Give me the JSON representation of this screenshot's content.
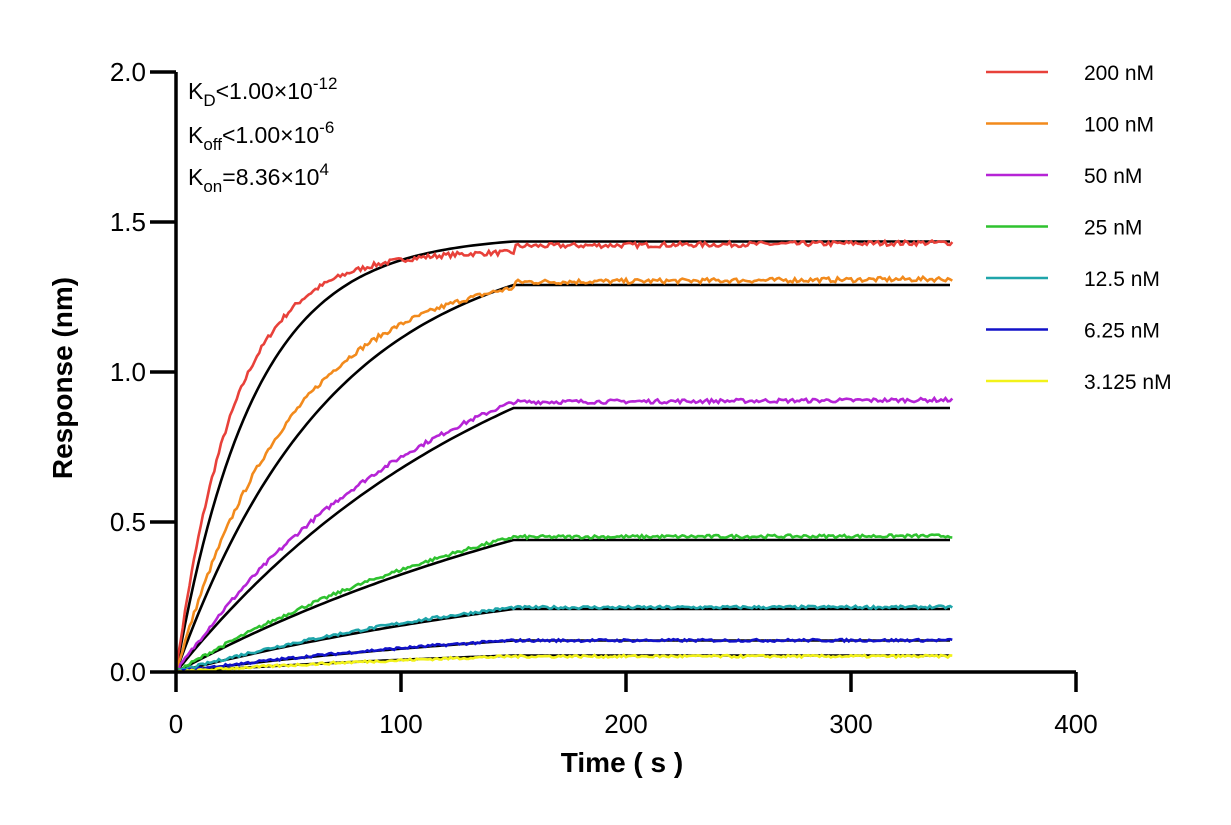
{
  "chart_data": {
    "type": "line",
    "xlabel": "Time ( s )",
    "ylabel": "Response (nm)",
    "xlim": [
      0,
      400
    ],
    "ylim": [
      0,
      2.0
    ],
    "x_ticks": [
      "0",
      "100",
      "200",
      "300",
      "400"
    ],
    "y_ticks": [
      "0.0",
      "0.5",
      "1.0",
      "1.5",
      "2.0"
    ],
    "legend_placement": "top-right, outside plot",
    "grid": false,
    "association_end_s": 150,
    "dissociation_end_s": 345,
    "series": [
      {
        "name": "200 nM",
        "color": "#E8413A",
        "plateau": 1.42,
        "fit_plateau": 1.435,
        "rate": 0.032
      },
      {
        "name": "100 nM",
        "color": "#F28A1C",
        "plateau": 1.3,
        "fit_plateau": 1.29,
        "rate": 0.016
      },
      {
        "name": "50 nM",
        "color": "#B624D6",
        "plateau": 0.9,
        "fit_plateau": 0.88,
        "rate": 0.0075
      },
      {
        "name": "25 nM",
        "color": "#2FC22F",
        "plateau": 0.45,
        "fit_plateau": 0.44,
        "rate": 0.005
      },
      {
        "name": "12.5 nM",
        "color": "#1FA5AA",
        "plateau": 0.215,
        "fit_plateau": 0.21,
        "rate": 0.005
      },
      {
        "name": "6.25 nM",
        "color": "#1212C8",
        "plateau": 0.105,
        "fit_plateau": 0.105,
        "rate": 0.005
      },
      {
        "name": "3.125 nM",
        "color": "#F2F21A",
        "plateau": 0.052,
        "fit_plateau": 0.055,
        "rate": 0.005
      }
    ],
    "fit_color": "#000000",
    "annotations": {
      "kd": {
        "main": "K",
        "sub": "D",
        "rest": "<1.00×10",
        "sup": "-12"
      },
      "koff": {
        "main": "K",
        "sub": "off",
        "rest": "<1.00×10",
        "sup": "-6"
      },
      "kon": {
        "main": "K",
        "sub": "on",
        "rest": "=8.36×10",
        "sup": "4"
      }
    }
  }
}
